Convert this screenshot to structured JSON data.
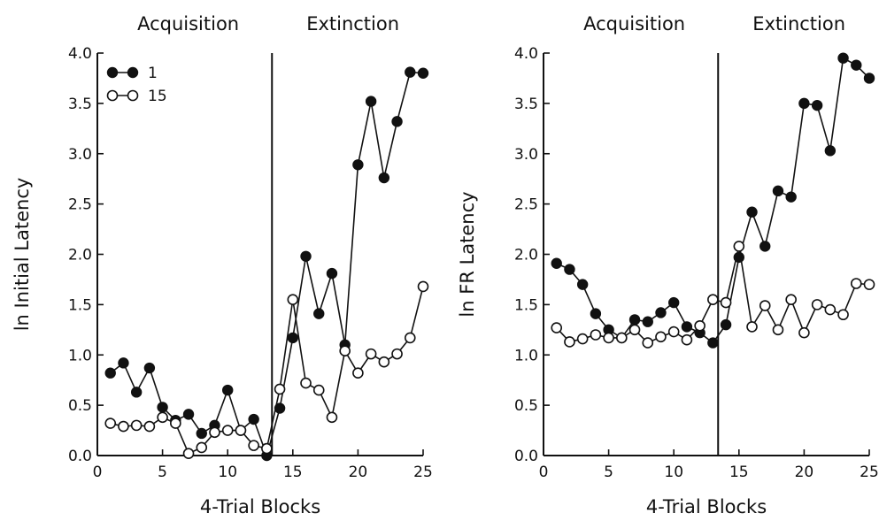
{
  "chart_data": [
    {
      "type": "line",
      "xlabel": "4-Trial Blocks",
      "ylabel": "ln Initial Latency",
      "xlim": [
        0,
        25
      ],
      "ylim": [
        0,
        4.0
      ],
      "x_ticks": [
        0,
        5,
        10,
        15,
        20,
        25
      ],
      "y_ticks": [
        0.0,
        0.5,
        1.0,
        1.5,
        2.0,
        2.5,
        3.0,
        3.5,
        4.0
      ],
      "x_tick_labels": [
        "0",
        "5",
        "10",
        "15",
        "20",
        "25"
      ],
      "y_tick_labels": [
        "0.0",
        "0.5",
        "1.0",
        "1.5",
        "2.0",
        "2.5",
        "3.0",
        "3.5",
        "4.0"
      ],
      "phase_divider_x": 13.4,
      "phases": [
        "Acquisition",
        "Extinction"
      ],
      "legend_position": "top-left",
      "grid": false,
      "x": [
        1,
        2,
        3,
        4,
        5,
        6,
        7,
        8,
        9,
        10,
        11,
        12,
        13,
        14,
        15,
        16,
        17,
        18,
        19,
        20,
        21,
        22,
        23,
        24,
        25
      ],
      "series": [
        {
          "name": "1",
          "marker": "filled-circle",
          "values": [
            0.82,
            0.92,
            0.63,
            0.87,
            0.48,
            0.35,
            0.41,
            0.22,
            0.3,
            0.65,
            0.25,
            0.36,
            0.0,
            0.47,
            1.17,
            1.98,
            1.41,
            1.81,
            1.1,
            2.89,
            3.52,
            2.76,
            3.32,
            3.81,
            3.8
          ]
        },
        {
          "name": "15",
          "marker": "open-circle",
          "values": [
            0.32,
            0.29,
            0.3,
            0.29,
            0.38,
            0.32,
            0.02,
            0.08,
            0.23,
            0.25,
            0.25,
            0.1,
            0.07,
            0.66,
            1.55,
            0.72,
            0.65,
            0.38,
            1.04,
            0.82,
            1.01,
            0.93,
            1.01,
            1.17,
            1.68
          ]
        }
      ]
    },
    {
      "type": "line",
      "xlabel": "4-Trial Blocks",
      "ylabel": "ln FR Latency",
      "xlim": [
        0,
        25
      ],
      "ylim": [
        0,
        4.0
      ],
      "x_ticks": [
        0,
        5,
        10,
        15,
        20,
        25
      ],
      "y_ticks": [
        0.0,
        0.5,
        1.0,
        1.5,
        2.0,
        2.5,
        3.0,
        3.5,
        4.0
      ],
      "x_tick_labels": [
        "0",
        "5",
        "10",
        "15",
        "20",
        "25"
      ],
      "y_tick_labels": [
        "0.0",
        "0.5",
        "1.0",
        "1.5",
        "2.0",
        "2.5",
        "3.0",
        "3.5",
        "4.0"
      ],
      "phase_divider_x": 13.4,
      "phases": [
        "Acquisition",
        "Extinction"
      ],
      "grid": false,
      "x": [
        1,
        2,
        3,
        4,
        5,
        6,
        7,
        8,
        9,
        10,
        11,
        12,
        13,
        14,
        15,
        16,
        17,
        18,
        19,
        20,
        21,
        22,
        23,
        24,
        25
      ],
      "series": [
        {
          "marker": "filled-circle",
          "values": [
            1.91,
            1.85,
            1.7,
            1.41,
            1.25,
            1.17,
            1.35,
            1.33,
            1.42,
            1.52,
            1.28,
            1.22,
            1.12,
            1.3,
            1.97,
            2.42,
            2.08,
            2.63,
            2.57,
            3.5,
            3.48,
            3.03,
            3.95,
            3.88,
            3.75
          ]
        },
        {
          "marker": "open-circle",
          "values": [
            1.27,
            1.13,
            1.16,
            1.2,
            1.17,
            1.17,
            1.25,
            1.12,
            1.18,
            1.23,
            1.15,
            1.29,
            1.55,
            1.52,
            2.08,
            1.28,
            1.49,
            1.25,
            1.55,
            1.22,
            1.5,
            1.45,
            1.4,
            1.71,
            1.7
          ]
        }
      ]
    }
  ]
}
